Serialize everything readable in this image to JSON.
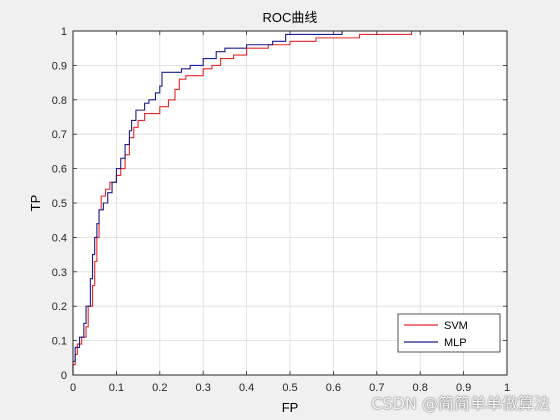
{
  "chart_data": {
    "type": "line",
    "title": "ROC曲线",
    "xlabel": "FP",
    "ylabel": "TP",
    "xlim": [
      0,
      1
    ],
    "ylim": [
      0,
      1
    ],
    "xticks": [
      "0",
      "0.1",
      "0.2",
      "0.3",
      "0.4",
      "0.5",
      "0.6",
      "0.7",
      "0.8",
      "0.9",
      "1"
    ],
    "yticks": [
      "0",
      "0.1",
      "0.2",
      "0.3",
      "0.4",
      "0.5",
      "0.6",
      "0.7",
      "0.8",
      "0.9",
      "1"
    ],
    "grid": true,
    "legend_position": "bottom-right",
    "series": [
      {
        "name": "SVM",
        "color": "#e8262b",
        "points": [
          [
            0,
            0
          ],
          [
            0,
            0.03
          ],
          [
            0.005,
            0.03
          ],
          [
            0.005,
            0.06
          ],
          [
            0.01,
            0.06
          ],
          [
            0.01,
            0.09
          ],
          [
            0.02,
            0.09
          ],
          [
            0.02,
            0.11
          ],
          [
            0.03,
            0.11
          ],
          [
            0.03,
            0.14
          ],
          [
            0.035,
            0.14
          ],
          [
            0.035,
            0.2
          ],
          [
            0.045,
            0.2
          ],
          [
            0.045,
            0.26
          ],
          [
            0.05,
            0.26
          ],
          [
            0.05,
            0.33
          ],
          [
            0.055,
            0.33
          ],
          [
            0.055,
            0.4
          ],
          [
            0.06,
            0.4
          ],
          [
            0.06,
            0.48
          ],
          [
            0.065,
            0.48
          ],
          [
            0.065,
            0.52
          ],
          [
            0.075,
            0.52
          ],
          [
            0.075,
            0.54
          ],
          [
            0.085,
            0.54
          ],
          [
            0.085,
            0.56
          ],
          [
            0.1,
            0.56
          ],
          [
            0.1,
            0.58
          ],
          [
            0.11,
            0.58
          ],
          [
            0.11,
            0.6
          ],
          [
            0.12,
            0.6
          ],
          [
            0.12,
            0.64
          ],
          [
            0.13,
            0.64
          ],
          [
            0.13,
            0.69
          ],
          [
            0.14,
            0.69
          ],
          [
            0.14,
            0.72
          ],
          [
            0.15,
            0.72
          ],
          [
            0.15,
            0.74
          ],
          [
            0.165,
            0.74
          ],
          [
            0.165,
            0.76
          ],
          [
            0.2,
            0.76
          ],
          [
            0.2,
            0.78
          ],
          [
            0.22,
            0.78
          ],
          [
            0.22,
            0.8
          ],
          [
            0.235,
            0.8
          ],
          [
            0.235,
            0.83
          ],
          [
            0.245,
            0.83
          ],
          [
            0.245,
            0.86
          ],
          [
            0.26,
            0.86
          ],
          [
            0.26,
            0.87
          ],
          [
            0.3,
            0.87
          ],
          [
            0.3,
            0.89
          ],
          [
            0.32,
            0.89
          ],
          [
            0.32,
            0.9
          ],
          [
            0.34,
            0.9
          ],
          [
            0.34,
            0.92
          ],
          [
            0.37,
            0.92
          ],
          [
            0.37,
            0.93
          ],
          [
            0.4,
            0.93
          ],
          [
            0.4,
            0.95
          ],
          [
            0.45,
            0.95
          ],
          [
            0.45,
            0.96
          ],
          [
            0.5,
            0.96
          ],
          [
            0.5,
            0.97
          ],
          [
            0.56,
            0.97
          ],
          [
            0.56,
            0.98
          ],
          [
            0.66,
            0.98
          ],
          [
            0.66,
            0.99
          ],
          [
            0.78,
            0.99
          ],
          [
            0.78,
            1
          ],
          [
            1,
            1
          ]
        ]
      },
      {
        "name": "MLP",
        "color": "#1c1c8e",
        "points": [
          [
            0,
            0
          ],
          [
            0,
            0.04
          ],
          [
            0.005,
            0.04
          ],
          [
            0.005,
            0.08
          ],
          [
            0.015,
            0.08
          ],
          [
            0.015,
            0.11
          ],
          [
            0.025,
            0.11
          ],
          [
            0.025,
            0.15
          ],
          [
            0.03,
            0.15
          ],
          [
            0.03,
            0.2
          ],
          [
            0.04,
            0.2
          ],
          [
            0.04,
            0.28
          ],
          [
            0.045,
            0.28
          ],
          [
            0.045,
            0.35
          ],
          [
            0.05,
            0.35
          ],
          [
            0.05,
            0.4
          ],
          [
            0.055,
            0.4
          ],
          [
            0.055,
            0.44
          ],
          [
            0.06,
            0.44
          ],
          [
            0.06,
            0.48
          ],
          [
            0.07,
            0.48
          ],
          [
            0.07,
            0.5
          ],
          [
            0.08,
            0.5
          ],
          [
            0.08,
            0.53
          ],
          [
            0.09,
            0.53
          ],
          [
            0.09,
            0.56
          ],
          [
            0.1,
            0.56
          ],
          [
            0.1,
            0.6
          ],
          [
            0.11,
            0.6
          ],
          [
            0.11,
            0.63
          ],
          [
            0.12,
            0.63
          ],
          [
            0.12,
            0.67
          ],
          [
            0.13,
            0.67
          ],
          [
            0.13,
            0.71
          ],
          [
            0.135,
            0.71
          ],
          [
            0.135,
            0.74
          ],
          [
            0.145,
            0.74
          ],
          [
            0.145,
            0.77
          ],
          [
            0.165,
            0.77
          ],
          [
            0.165,
            0.79
          ],
          [
            0.175,
            0.79
          ],
          [
            0.175,
            0.8
          ],
          [
            0.19,
            0.8
          ],
          [
            0.19,
            0.82
          ],
          [
            0.2,
            0.82
          ],
          [
            0.2,
            0.84
          ],
          [
            0.205,
            0.84
          ],
          [
            0.205,
            0.88
          ],
          [
            0.25,
            0.88
          ],
          [
            0.25,
            0.89
          ],
          [
            0.27,
            0.89
          ],
          [
            0.27,
            0.9
          ],
          [
            0.3,
            0.9
          ],
          [
            0.3,
            0.92
          ],
          [
            0.33,
            0.92
          ],
          [
            0.33,
            0.94
          ],
          [
            0.35,
            0.94
          ],
          [
            0.35,
            0.95
          ],
          [
            0.4,
            0.95
          ],
          [
            0.4,
            0.96
          ],
          [
            0.46,
            0.96
          ],
          [
            0.46,
            0.97
          ],
          [
            0.49,
            0.97
          ],
          [
            0.49,
            0.99
          ],
          [
            0.62,
            0.99
          ],
          [
            0.62,
            1
          ],
          [
            1,
            1
          ]
        ]
      }
    ]
  },
  "watermark": "CSDN @简简单单做算法"
}
